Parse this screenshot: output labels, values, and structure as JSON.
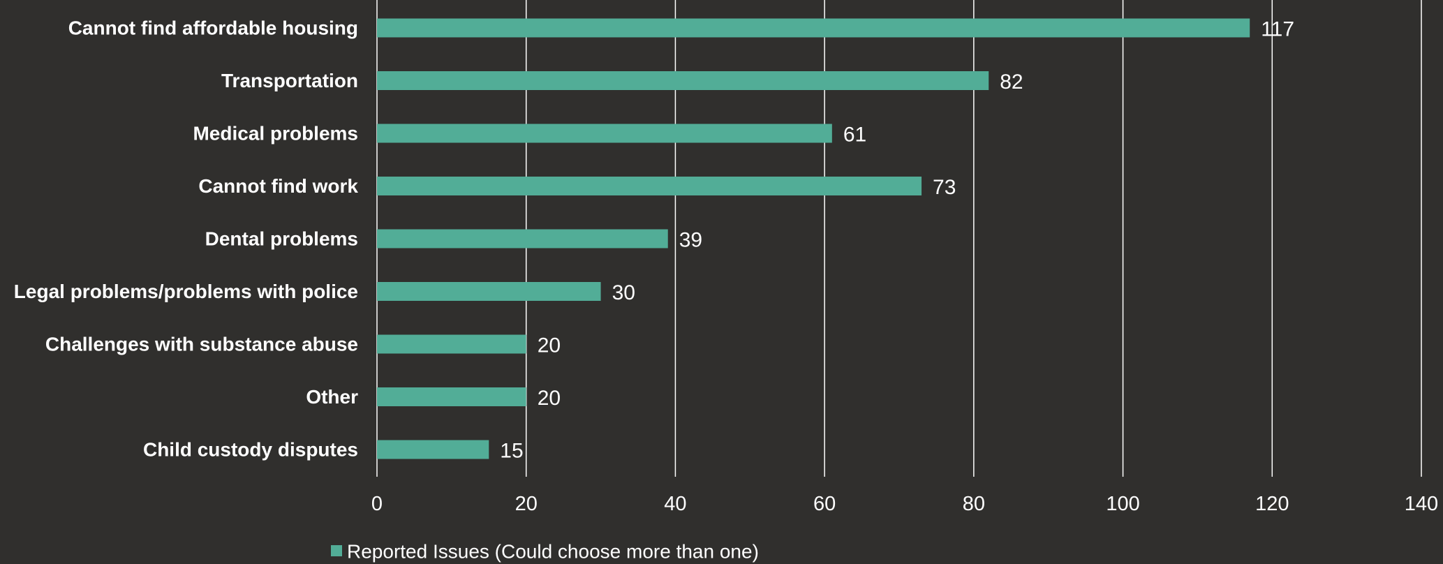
{
  "theme": {
    "background": "#302f2d",
    "bar_color": "#52ad97",
    "text_color": "#ffffff",
    "grid_color": "#ffffff"
  },
  "chart_data": {
    "type": "bar",
    "orientation": "horizontal",
    "categories": [
      "Cannot find affordable housing",
      "Transportation",
      "Medical problems",
      "Cannot find work",
      "Dental problems",
      "Legal problems/problems with police",
      "Challenges with substance abuse",
      "Other",
      "Child custody disputes"
    ],
    "series": [
      {
        "name": "Reported Issues (Could choose more than one)",
        "values": [
          117,
          82,
          61,
          73,
          39,
          30,
          20,
          20,
          15
        ]
      }
    ],
    "data_labels": [
      "117",
      "82",
      "61",
      "73",
      "39",
      "30",
      "20",
      "20",
      "15"
    ],
    "xlim": [
      0,
      140
    ],
    "xticks": [
      0,
      20,
      40,
      60,
      80,
      100,
      120,
      140
    ],
    "grid": "vertical",
    "legend": "bottom"
  }
}
